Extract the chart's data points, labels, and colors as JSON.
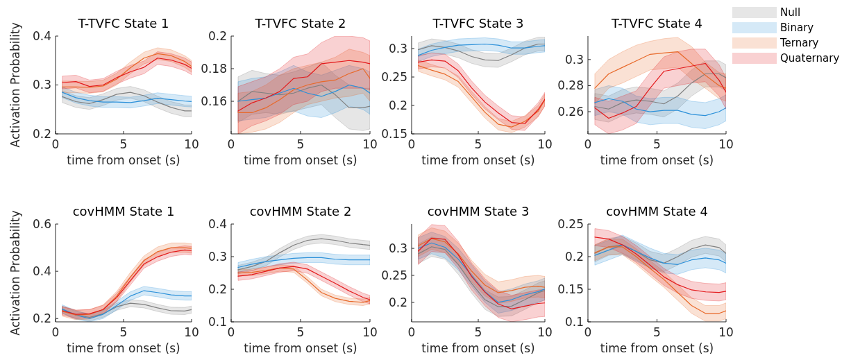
{
  "chart_data": [
    {
      "type": "line",
      "title": "T-TVFC State 1",
      "xlabel": "time from onset (s)",
      "ylabel": "Activation Probability",
      "x": [
        0.5,
        1.5,
        2.5,
        3.5,
        4.5,
        5.5,
        6.5,
        7.5,
        8.5,
        9.5,
        10
      ],
      "xlim": [
        0,
        10
      ],
      "xticks": [
        0,
        5,
        10
      ],
      "ylim": [
        0.2,
        0.4
      ],
      "yticks": [
        0.2,
        0.3,
        0.4
      ],
      "series": [
        {
          "color": "#808080",
          "values": [
            0.276,
            0.266,
            0.262,
            0.27,
            0.281,
            0.285,
            0.278,
            0.265,
            0.254,
            0.247,
            0.247
          ],
          "lower": [
            0.264,
            0.254,
            0.25,
            0.258,
            0.269,
            0.273,
            0.266,
            0.253,
            0.242,
            0.235,
            0.235
          ],
          "upper": [
            0.288,
            0.278,
            0.274,
            0.282,
            0.293,
            0.297,
            0.29,
            0.277,
            0.266,
            0.259,
            0.259
          ]
        },
        {
          "color": "#2b90d9",
          "values": [
            0.285,
            0.274,
            0.268,
            0.265,
            0.265,
            0.264,
            0.268,
            0.273,
            0.27,
            0.267,
            0.266
          ],
          "lower": [
            0.274,
            0.263,
            0.257,
            0.254,
            0.254,
            0.253,
            0.257,
            0.262,
            0.259,
            0.256,
            0.255
          ],
          "upper": [
            0.296,
            0.285,
            0.279,
            0.276,
            0.276,
            0.275,
            0.279,
            0.284,
            0.281,
            0.278,
            0.277
          ]
        },
        {
          "color": "#e8692a",
          "values": [
            0.296,
            0.296,
            0.295,
            0.298,
            0.312,
            0.335,
            0.355,
            0.364,
            0.36,
            0.348,
            0.338
          ],
          "lower": [
            0.284,
            0.284,
            0.283,
            0.286,
            0.3,
            0.323,
            0.343,
            0.352,
            0.348,
            0.336,
            0.326
          ],
          "upper": [
            0.308,
            0.308,
            0.307,
            0.31,
            0.324,
            0.347,
            0.367,
            0.376,
            0.372,
            0.36,
            0.35
          ]
        },
        {
          "color": "#e31a1c",
          "values": [
            0.305,
            0.307,
            0.297,
            0.3,
            0.315,
            0.327,
            0.336,
            0.355,
            0.351,
            0.342,
            0.334
          ],
          "lower": [
            0.292,
            0.294,
            0.284,
            0.287,
            0.302,
            0.314,
            0.323,
            0.342,
            0.338,
            0.329,
            0.321
          ],
          "upper": [
            0.318,
            0.32,
            0.31,
            0.313,
            0.328,
            0.34,
            0.349,
            0.368,
            0.364,
            0.355,
            0.347
          ]
        }
      ]
    },
    {
      "type": "line",
      "title": "T-TVFC State 2",
      "xlabel": "time from onset (s)",
      "x": [
        0.5,
        1.5,
        2.5,
        3.5,
        4.5,
        5.5,
        6.5,
        7.5,
        8.5,
        9.5,
        10
      ],
      "xlim": [
        0,
        10
      ],
      "xticks": [
        0,
        5,
        10
      ],
      "ylim": [
        0.14,
        0.2
      ],
      "yticks": [
        0.16,
        0.18,
        0.2
      ],
      "series": [
        {
          "color": "#808080",
          "values": [
            0.16,
            0.166,
            0.165,
            0.164,
            0.165,
            0.168,
            0.17,
            0.164,
            0.156,
            0.156,
            0.157
          ],
          "lower": [
            0.147,
            0.152,
            0.153,
            0.152,
            0.154,
            0.156,
            0.158,
            0.15,
            0.143,
            0.142,
            0.143
          ],
          "upper": [
            0.175,
            0.179,
            0.177,
            0.176,
            0.178,
            0.181,
            0.184,
            0.176,
            0.17,
            0.168,
            0.168
          ]
        },
        {
          "color": "#2b90d9",
          "values": [
            0.16,
            0.161,
            0.162,
            0.165,
            0.168,
            0.165,
            0.163,
            0.166,
            0.17,
            0.168,
            0.165
          ],
          "lower": [
            0.148,
            0.149,
            0.15,
            0.153,
            0.154,
            0.151,
            0.15,
            0.153,
            0.157,
            0.155,
            0.152
          ],
          "upper": [
            0.172,
            0.174,
            0.175,
            0.178,
            0.182,
            0.178,
            0.176,
            0.179,
            0.182,
            0.18,
            0.178
          ]
        },
        {
          "color": "#e8692a",
          "values": [
            0.153,
            0.153,
            0.156,
            0.161,
            0.167,
            0.17,
            0.172,
            0.173,
            0.177,
            0.18,
            0.174
          ],
          "lower": [
            0.14,
            0.141,
            0.143,
            0.147,
            0.153,
            0.158,
            0.16,
            0.162,
            0.163,
            0.165,
            0.16
          ],
          "upper": [
            0.165,
            0.166,
            0.17,
            0.176,
            0.18,
            0.182,
            0.184,
            0.187,
            0.192,
            0.19,
            0.188
          ]
        },
        {
          "color": "#e31a1c",
          "values": [
            0.154,
            0.159,
            0.162,
            0.166,
            0.174,
            0.175,
            0.183,
            0.184,
            0.185,
            0.184,
            0.183
          ],
          "lower": [
            0.14,
            0.145,
            0.148,
            0.152,
            0.158,
            0.16,
            0.166,
            0.168,
            0.168,
            0.168,
            0.167
          ],
          "upper": [
            0.169,
            0.172,
            0.175,
            0.18,
            0.187,
            0.189,
            0.196,
            0.2,
            0.2,
            0.199,
            0.197
          ]
        }
      ]
    },
    {
      "type": "line",
      "title": "T-TVFC State 3",
      "xlabel": "time from onset (s)",
      "x": [
        0.5,
        1.5,
        2.5,
        3.5,
        4.5,
        5.5,
        6.5,
        7.5,
        8.5,
        9.5,
        10
      ],
      "xlim": [
        0,
        10
      ],
      "xticks": [
        0,
        5,
        10
      ],
      "ylim": [
        0.15,
        0.322
      ],
      "yticks": [
        0.15,
        0.2,
        0.25,
        0.3
      ],
      "series": [
        {
          "color": "#808080",
          "values": [
            0.298,
            0.305,
            0.302,
            0.296,
            0.286,
            0.28,
            0.279,
            0.289,
            0.301,
            0.308,
            0.308
          ],
          "lower": [
            0.286,
            0.293,
            0.29,
            0.284,
            0.274,
            0.268,
            0.267,
            0.277,
            0.289,
            0.296,
            0.296
          ],
          "upper": [
            0.31,
            0.317,
            0.314,
            0.308,
            0.298,
            0.292,
            0.291,
            0.301,
            0.313,
            0.32,
            0.32
          ]
        },
        {
          "color": "#2b90d9",
          "values": [
            0.288,
            0.297,
            0.302,
            0.306,
            0.307,
            0.308,
            0.306,
            0.301,
            0.301,
            0.304,
            0.305
          ],
          "lower": [
            0.277,
            0.286,
            0.291,
            0.295,
            0.296,
            0.297,
            0.295,
            0.29,
            0.29,
            0.293,
            0.294
          ],
          "upper": [
            0.299,
            0.308,
            0.313,
            0.317,
            0.318,
            0.319,
            0.317,
            0.312,
            0.312,
            0.315,
            0.316
          ]
        },
        {
          "color": "#e8692a",
          "values": [
            0.27,
            0.262,
            0.255,
            0.242,
            0.215,
            0.188,
            0.167,
            0.162,
            0.172,
            0.19,
            0.21
          ],
          "lower": [
            0.26,
            0.252,
            0.245,
            0.232,
            0.205,
            0.178,
            0.157,
            0.152,
            0.162,
            0.18,
            0.2
          ],
          "upper": [
            0.28,
            0.272,
            0.265,
            0.252,
            0.225,
            0.198,
            0.177,
            0.172,
            0.182,
            0.2,
            0.22
          ]
        },
        {
          "color": "#e31a1c",
          "values": [
            0.276,
            0.28,
            0.278,
            0.261,
            0.231,
            0.206,
            0.187,
            0.17,
            0.168,
            0.193,
            0.211
          ],
          "lower": [
            0.264,
            0.268,
            0.266,
            0.249,
            0.219,
            0.194,
            0.175,
            0.158,
            0.156,
            0.181,
            0.199
          ],
          "upper": [
            0.288,
            0.292,
            0.29,
            0.273,
            0.243,
            0.218,
            0.199,
            0.182,
            0.18,
            0.205,
            0.223
          ]
        }
      ]
    },
    {
      "type": "line",
      "title": "T-TVFC State 4",
      "xlabel": "time from onset (s)",
      "x": [
        0.5,
        1.5,
        2.5,
        3.5,
        4.5,
        5.5,
        6.5,
        7.5,
        8.5,
        9.5,
        10
      ],
      "xlim": [
        0,
        10
      ],
      "xticks": [
        0,
        5,
        10
      ],
      "ylim": [
        0.243,
        0.318
      ],
      "yticks": [
        0.26,
        0.28,
        0.3
      ],
      "legend": "right",
      "series": [
        {
          "name": "Null",
          "color": "#808080",
          "values": [
            0.264,
            0.262,
            0.267,
            0.269,
            0.268,
            0.266,
            0.272,
            0.282,
            0.289,
            0.289,
            0.286
          ],
          "lower": [
            0.254,
            0.252,
            0.257,
            0.259,
            0.258,
            0.256,
            0.262,
            0.272,
            0.279,
            0.279,
            0.276
          ],
          "upper": [
            0.274,
            0.272,
            0.277,
            0.279,
            0.278,
            0.276,
            0.282,
            0.292,
            0.299,
            0.299,
            0.296
          ]
        },
        {
          "name": "Binary",
          "color": "#2b90d9",
          "values": [
            0.267,
            0.27,
            0.268,
            0.262,
            0.26,
            0.261,
            0.261,
            0.258,
            0.257,
            0.26,
            0.263
          ],
          "lower": [
            0.257,
            0.26,
            0.258,
            0.252,
            0.25,
            0.251,
            0.251,
            0.248,
            0.247,
            0.25,
            0.253
          ],
          "upper": [
            0.277,
            0.28,
            0.278,
            0.272,
            0.27,
            0.271,
            0.271,
            0.268,
            0.267,
            0.27,
            0.273
          ]
        },
        {
          "name": "Ternary",
          "color": "#e8692a",
          "values": [
            0.278,
            0.289,
            0.294,
            0.299,
            0.304,
            0.305,
            0.306,
            0.297,
            0.288,
            0.28,
            0.278
          ],
          "lower": [
            0.266,
            0.278,
            0.282,
            0.287,
            0.292,
            0.293,
            0.294,
            0.285,
            0.278,
            0.27,
            0.268
          ],
          "upper": [
            0.289,
            0.3,
            0.306,
            0.311,
            0.314,
            0.316,
            0.317,
            0.31,
            0.298,
            0.29,
            0.289
          ]
        },
        {
          "name": "Quaternary",
          "color": "#e31a1c",
          "values": [
            0.263,
            0.255,
            0.259,
            0.264,
            0.278,
            0.291,
            0.293,
            0.295,
            0.297,
            0.284,
            0.275
          ],
          "lower": [
            0.25,
            0.243,
            0.246,
            0.251,
            0.265,
            0.278,
            0.28,
            0.282,
            0.283,
            0.272,
            0.262
          ],
          "upper": [
            0.271,
            0.268,
            0.272,
            0.276,
            0.29,
            0.302,
            0.306,
            0.308,
            0.308,
            0.296,
            0.286
          ]
        }
      ]
    },
    {
      "type": "line",
      "title": "covHMM State 1",
      "xlabel": "time from onset (s)",
      "ylabel": "Activation Probability",
      "x": [
        0.5,
        1.5,
        2.5,
        3.5,
        4.5,
        5.5,
        6.5,
        7.5,
        8.5,
        9.5,
        10
      ],
      "xlim": [
        0,
        10
      ],
      "xticks": [
        0,
        5,
        10
      ],
      "ylim": [
        0.186,
        0.6
      ],
      "yticks": [
        0.2,
        0.4,
        0.6
      ],
      "series": [
        {
          "color": "#808080",
          "values": [
            0.238,
            0.215,
            0.205,
            0.22,
            0.25,
            0.265,
            0.26,
            0.245,
            0.233,
            0.232,
            0.238
          ],
          "lower": [
            0.223,
            0.2,
            0.19,
            0.205,
            0.235,
            0.25,
            0.245,
            0.23,
            0.218,
            0.217,
            0.223
          ],
          "upper": [
            0.253,
            0.23,
            0.22,
            0.235,
            0.265,
            0.28,
            0.275,
            0.26,
            0.248,
            0.247,
            0.253
          ]
        },
        {
          "color": "#2b90d9",
          "values": [
            0.24,
            0.215,
            0.2,
            0.218,
            0.255,
            0.295,
            0.318,
            0.31,
            0.3,
            0.296,
            0.296
          ],
          "lower": [
            0.222,
            0.197,
            0.186,
            0.2,
            0.237,
            0.277,
            0.3,
            0.292,
            0.282,
            0.278,
            0.278
          ],
          "upper": [
            0.258,
            0.233,
            0.218,
            0.236,
            0.273,
            0.313,
            0.336,
            0.328,
            0.318,
            0.314,
            0.314
          ]
        },
        {
          "color": "#e8692a",
          "values": [
            0.23,
            0.215,
            0.218,
            0.238,
            0.295,
            0.375,
            0.445,
            0.483,
            0.5,
            0.5,
            0.497
          ],
          "lower": [
            0.21,
            0.195,
            0.198,
            0.218,
            0.275,
            0.355,
            0.425,
            0.463,
            0.48,
            0.48,
            0.477
          ],
          "upper": [
            0.25,
            0.235,
            0.238,
            0.258,
            0.315,
            0.395,
            0.465,
            0.503,
            0.52,
            0.52,
            0.517
          ]
        },
        {
          "color": "#e31a1c",
          "values": [
            0.233,
            0.218,
            0.22,
            0.238,
            0.289,
            0.36,
            0.431,
            0.461,
            0.481,
            0.49,
            0.487
          ],
          "lower": [
            0.215,
            0.2,
            0.202,
            0.22,
            0.271,
            0.342,
            0.413,
            0.443,
            0.463,
            0.472,
            0.469
          ],
          "upper": [
            0.251,
            0.236,
            0.238,
            0.256,
            0.307,
            0.378,
            0.449,
            0.479,
            0.499,
            0.508,
            0.505
          ]
        }
      ]
    },
    {
      "type": "line",
      "title": "covHMM State 2",
      "xlabel": "time from onset (s)",
      "x": [
        0.5,
        1.5,
        2.5,
        3.5,
        4.5,
        5.5,
        6.5,
        7.5,
        8.5,
        9.5,
        10
      ],
      "xlim": [
        0,
        10
      ],
      "xticks": [
        0,
        5,
        10
      ],
      "ylim": [
        0.1,
        0.4
      ],
      "yticks": [
        0.1,
        0.2,
        0.3,
        0.4
      ],
      "series": [
        {
          "color": "#808080",
          "values": [
            0.26,
            0.27,
            0.285,
            0.312,
            0.335,
            0.35,
            0.355,
            0.35,
            0.342,
            0.337,
            0.335
          ],
          "lower": [
            0.247,
            0.257,
            0.272,
            0.299,
            0.322,
            0.337,
            0.342,
            0.337,
            0.329,
            0.324,
            0.322
          ],
          "upper": [
            0.273,
            0.283,
            0.298,
            0.325,
            0.348,
            0.363,
            0.368,
            0.363,
            0.355,
            0.35,
            0.348
          ]
        },
        {
          "color": "#2b90d9",
          "values": [
            0.267,
            0.277,
            0.285,
            0.29,
            0.295,
            0.297,
            0.297,
            0.292,
            0.29,
            0.29,
            0.29
          ],
          "lower": [
            0.252,
            0.262,
            0.27,
            0.275,
            0.28,
            0.282,
            0.282,
            0.277,
            0.275,
            0.275,
            0.275
          ],
          "upper": [
            0.282,
            0.292,
            0.3,
            0.305,
            0.31,
            0.312,
            0.312,
            0.307,
            0.305,
            0.305,
            0.305
          ]
        },
        {
          "color": "#e8692a",
          "values": [
            0.25,
            0.252,
            0.258,
            0.265,
            0.262,
            0.228,
            0.19,
            0.172,
            0.163,
            0.16,
            0.165
          ],
          "lower": [
            0.24,
            0.242,
            0.248,
            0.255,
            0.252,
            0.218,
            0.18,
            0.162,
            0.153,
            0.15,
            0.155
          ],
          "upper": [
            0.26,
            0.262,
            0.268,
            0.275,
            0.272,
            0.238,
            0.2,
            0.182,
            0.173,
            0.17,
            0.175
          ]
        },
        {
          "color": "#e31a1c",
          "values": [
            0.24,
            0.245,
            0.255,
            0.265,
            0.27,
            0.262,
            0.24,
            0.218,
            0.195,
            0.175,
            0.168
          ],
          "lower": [
            0.227,
            0.232,
            0.242,
            0.252,
            0.257,
            0.249,
            0.227,
            0.205,
            0.182,
            0.162,
            0.155
          ],
          "upper": [
            0.253,
            0.258,
            0.268,
            0.278,
            0.283,
            0.275,
            0.253,
            0.231,
            0.208,
            0.188,
            0.181
          ]
        }
      ]
    },
    {
      "type": "line",
      "title": "covHMM State 3",
      "xlabel": "time from onset (s)",
      "x": [
        0.5,
        1.5,
        2.5,
        3.5,
        4.5,
        5.5,
        6.5,
        7.5,
        8.5,
        9.5,
        10
      ],
      "xlim": [
        0,
        10
      ],
      "xticks": [
        0,
        5,
        10
      ],
      "ylim": [
        0.164,
        0.345
      ],
      "yticks": [
        0.2,
        0.25,
        0.3
      ],
      "series": [
        {
          "color": "#808080",
          "values": [
            0.29,
            0.303,
            0.298,
            0.27,
            0.235,
            0.205,
            0.192,
            0.193,
            0.205,
            0.218,
            0.222
          ],
          "lower": [
            0.272,
            0.285,
            0.28,
            0.252,
            0.217,
            0.187,
            0.174,
            0.175,
            0.187,
            0.2,
            0.204
          ],
          "upper": [
            0.308,
            0.321,
            0.316,
            0.288,
            0.253,
            0.223,
            0.21,
            0.211,
            0.223,
            0.236,
            0.24
          ]
        },
        {
          "color": "#2b90d9",
          "values": [
            0.3,
            0.31,
            0.302,
            0.28,
            0.25,
            0.22,
            0.2,
            0.205,
            0.214,
            0.22,
            0.225
          ],
          "lower": [
            0.28,
            0.29,
            0.282,
            0.26,
            0.23,
            0.2,
            0.18,
            0.185,
            0.194,
            0.2,
            0.205
          ],
          "upper": [
            0.32,
            0.33,
            0.322,
            0.3,
            0.27,
            0.24,
            0.22,
            0.225,
            0.234,
            0.24,
            0.245
          ]
        },
        {
          "color": "#e8692a",
          "values": [
            0.305,
            0.318,
            0.312,
            0.29,
            0.258,
            0.232,
            0.218,
            0.222,
            0.228,
            0.23,
            0.228
          ],
          "lower": [
            0.285,
            0.298,
            0.292,
            0.27,
            0.238,
            0.212,
            0.198,
            0.202,
            0.208,
            0.21,
            0.208
          ],
          "upper": [
            0.325,
            0.338,
            0.332,
            0.31,
            0.278,
            0.252,
            0.238,
            0.242,
            0.248,
            0.25,
            0.248
          ]
        },
        {
          "color": "#e31a1c",
          "values": [
            0.295,
            0.319,
            0.317,
            0.288,
            0.248,
            0.219,
            0.197,
            0.188,
            0.193,
            0.198,
            0.199
          ],
          "lower": [
            0.27,
            0.294,
            0.292,
            0.263,
            0.223,
            0.194,
            0.172,
            0.164,
            0.168,
            0.173,
            0.174
          ],
          "upper": [
            0.32,
            0.344,
            0.342,
            0.313,
            0.273,
            0.244,
            0.222,
            0.213,
            0.218,
            0.223,
            0.224
          ]
        }
      ]
    },
    {
      "type": "line",
      "title": "covHMM State 4",
      "xlabel": "time from onset (s)",
      "x": [
        0.5,
        1.5,
        2.5,
        3.5,
        4.5,
        5.5,
        6.5,
        7.5,
        8.5,
        9.5,
        10
      ],
      "xlim": [
        0,
        10
      ],
      "xticks": [
        0,
        5,
        10
      ],
      "ylim": [
        0.1,
        0.25
      ],
      "yticks": [
        0.1,
        0.15,
        0.2,
        0.25
      ],
      "series": [
        {
          "color": "#808080",
          "values": [
            0.205,
            0.215,
            0.218,
            0.208,
            0.195,
            0.19,
            0.2,
            0.212,
            0.218,
            0.214,
            0.205
          ],
          "lower": [
            0.192,
            0.202,
            0.205,
            0.195,
            0.182,
            0.177,
            0.187,
            0.199,
            0.205,
            0.201,
            0.192
          ],
          "upper": [
            0.218,
            0.228,
            0.231,
            0.221,
            0.208,
            0.203,
            0.213,
            0.225,
            0.231,
            0.227,
            0.218
          ]
        },
        {
          "color": "#2b90d9",
          "values": [
            0.202,
            0.21,
            0.218,
            0.208,
            0.198,
            0.19,
            0.188,
            0.195,
            0.198,
            0.195,
            0.19
          ],
          "lower": [
            0.187,
            0.195,
            0.203,
            0.193,
            0.183,
            0.175,
            0.173,
            0.18,
            0.183,
            0.18,
            0.175
          ],
          "upper": [
            0.217,
            0.225,
            0.233,
            0.223,
            0.213,
            0.205,
            0.203,
            0.21,
            0.213,
            0.21,
            0.205
          ]
        },
        {
          "color": "#e8692a",
          "values": [
            0.206,
            0.215,
            0.215,
            0.2,
            0.182,
            0.165,
            0.145,
            0.125,
            0.113,
            0.113,
            0.117
          ],
          "lower": [
            0.194,
            0.203,
            0.203,
            0.188,
            0.17,
            0.153,
            0.133,
            0.113,
            0.101,
            0.101,
            0.105
          ],
          "upper": [
            0.218,
            0.227,
            0.227,
            0.212,
            0.194,
            0.177,
            0.157,
            0.137,
            0.125,
            0.125,
            0.129
          ]
        },
        {
          "color": "#e31a1c",
          "values": [
            0.23,
            0.227,
            0.218,
            0.204,
            0.187,
            0.169,
            0.157,
            0.149,
            0.146,
            0.145,
            0.147
          ],
          "lower": [
            0.217,
            0.214,
            0.205,
            0.191,
            0.174,
            0.156,
            0.144,
            0.136,
            0.133,
            0.132,
            0.134
          ],
          "upper": [
            0.243,
            0.24,
            0.231,
            0.217,
            0.2,
            0.182,
            0.17,
            0.162,
            0.159,
            0.158,
            0.16
          ]
        }
      ]
    }
  ]
}
